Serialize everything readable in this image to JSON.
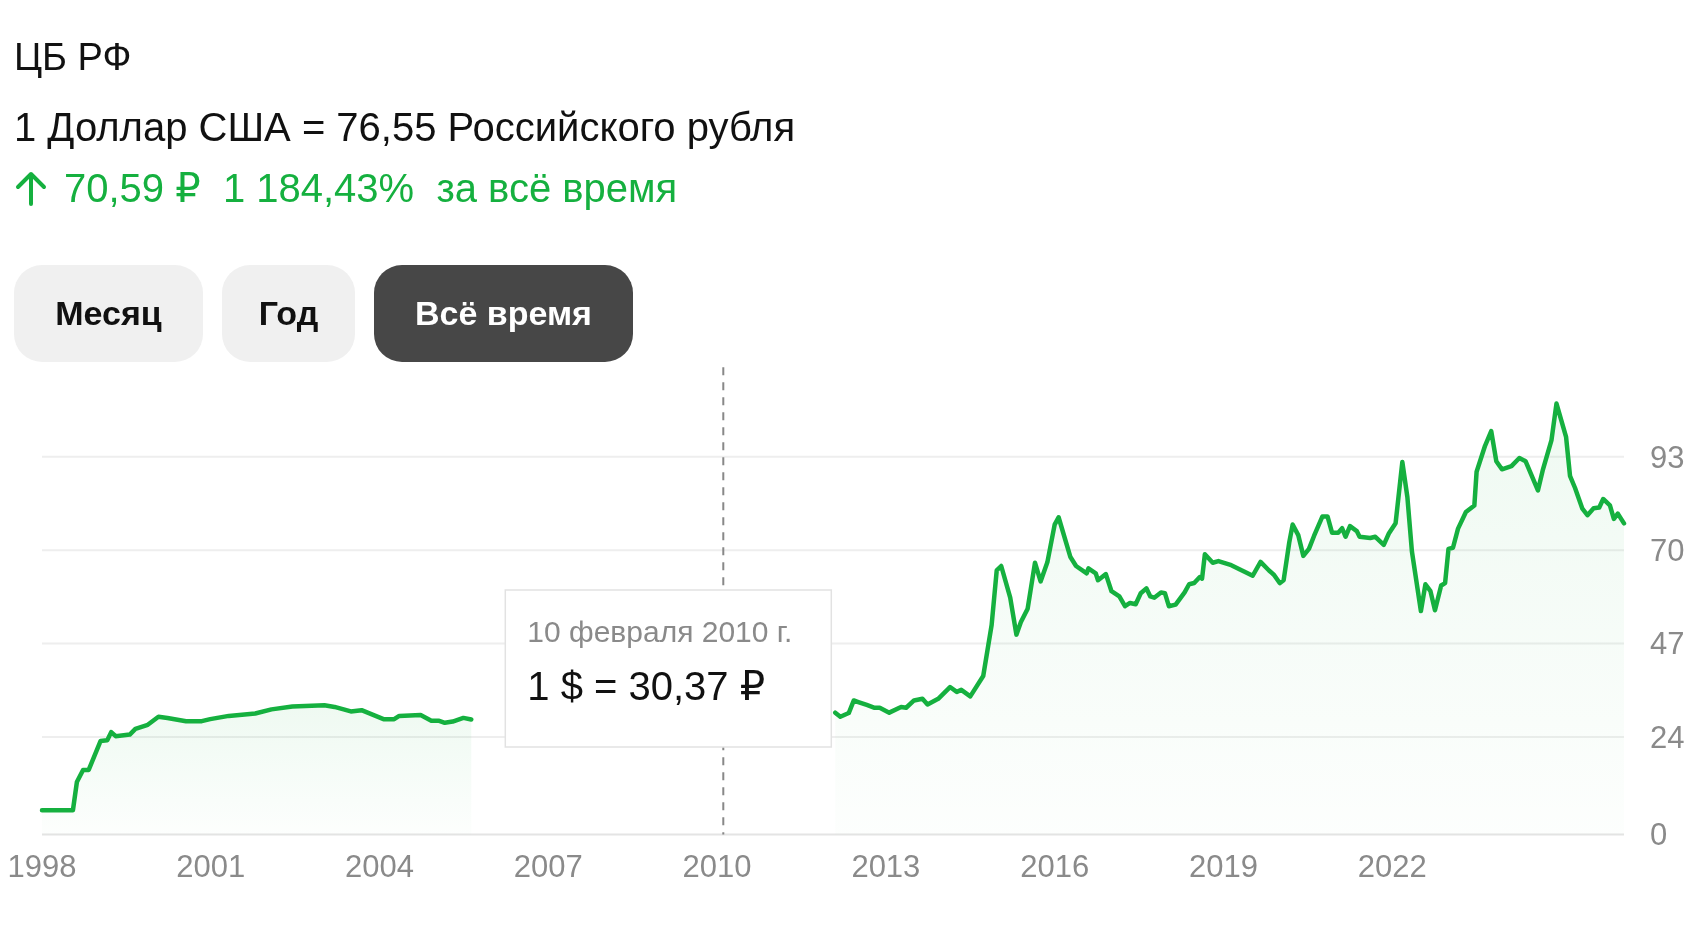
{
  "chart_data": {
    "type": "area",
    "title": "ЦБ РФ",
    "subtitle": "1 Доллар США = 76,55 Российского рубля",
    "annotations": [
      "70,59 ₽  1 184,43%  за всё время",
      "Месяц",
      "Год",
      "Всё время",
      "1 $ = 30,37 ₽"
    ],
    "series": [
      {
        "color": "#15b03f",
        "x": [
          1998.0,
          1998.55,
          1998.62,
          1998.73,
          1998.83,
          1999.04,
          1999.16,
          1999.23,
          1999.31,
          1999.56,
          1999.66,
          1999.88,
          2000.07,
          2000.23,
          2000.56,
          2000.84,
          2000.99,
          2001.32,
          2001.79,
          2002.08,
          2002.45,
          2003.02,
          2003.2,
          2003.49,
          2003.68,
          2004.07,
          2004.26,
          2004.35,
          2004.73,
          2004.92,
          2005.06,
          2005.16,
          2005.3,
          2005.49,
          2005.63
        ],
        "values": [
          6.0,
          6.0,
          12.9,
          15.9,
          15.9,
          23.0,
          23.2,
          25.2,
          24.2,
          24.6,
          26.0,
          27.0,
          29.0,
          28.7,
          27.9,
          27.9,
          28.4,
          29.2,
          29.8,
          30.8,
          31.5,
          31.8,
          31.4,
          30.3,
          30.6,
          28.4,
          28.4,
          29.2,
          29.4,
          28.0,
          28.0,
          27.5,
          27.8,
          28.7,
          28.3
        ]
      },
      {
        "color": "#15b03f",
        "x": [
          2012.1,
          2012.19,
          2012.34,
          2012.43,
          2012.51,
          2012.66,
          2012.8,
          2012.89,
          2013.06,
          2013.27,
          2013.36,
          2013.5,
          2013.65,
          2013.74,
          2013.93,
          2014.14,
          2014.26,
          2014.34,
          2014.5,
          2014.73,
          2014.88,
          2014.97,
          2015.05,
          2015.21,
          2015.32,
          2015.4,
          2015.52,
          2015.65,
          2015.75,
          2015.87,
          2016.0,
          2016.07,
          2016.28,
          2016.38,
          2016.57,
          2016.6,
          2016.73,
          2016.77,
          2016.91,
          2017.01,
          2017.15,
          2017.25,
          2017.34,
          2017.44,
          2017.53,
          2017.63,
          2017.7,
          2017.77,
          2017.89,
          2017.96,
          2018.03,
          2018.15,
          2018.31,
          2018.39,
          2018.48,
          2018.58,
          2018.62,
          2018.67,
          2018.81,
          2018.91,
          2019.14,
          2019.33,
          2019.52,
          2019.66,
          2019.81,
          2019.9,
          2020.0,
          2020.07,
          2020.17,
          2020.23,
          2020.33,
          2020.42,
          2020.52,
          2020.61,
          2020.76,
          2020.85,
          2020.93,
          2021.04,
          2021.11,
          2021.17,
          2021.25,
          2021.37,
          2021.42,
          2021.61,
          2021.7,
          2021.85,
          2021.94,
          2022.06,
          2022.18,
          2022.27,
          2022.35,
          2022.51,
          2022.59,
          2022.68,
          2022.76,
          2022.87,
          2022.94,
          2023.0,
          2023.08,
          2023.17,
          2023.31,
          2023.46,
          2023.5,
          2023.65,
          2023.76,
          2023.85,
          2023.95,
          2024.12,
          2024.26,
          2024.37,
          2024.59,
          2024.68,
          2024.83,
          2024.92,
          2025.09,
          2025.16,
          2025.25,
          2025.38,
          2025.47,
          2025.58,
          2025.68,
          2025.75,
          2025.87,
          2025.94,
          2026.01,
          2026.12
        ],
        "values": [
          30.0,
          29.0,
          29.9,
          33.0,
          32.6,
          31.9,
          31.2,
          31.2,
          30.0,
          31.4,
          31.2,
          33.0,
          33.4,
          32.0,
          33.4,
          36.3,
          35.1,
          35.6,
          34.0,
          39.0,
          51.6,
          65.0,
          66.1,
          58.3,
          49.2,
          52.3,
          55.6,
          66.9,
          62.3,
          67.0,
          76.3,
          78.1,
          68.3,
          66.1,
          64.3,
          65.5,
          64.3,
          62.6,
          64.1,
          59.9,
          58.6,
          56.2,
          57.0,
          56.7,
          59.4,
          60.6,
          58.6,
          58.3,
          59.6,
          59.4,
          56.2,
          56.6,
          59.6,
          61.6,
          61.9,
          63.4,
          63.0,
          69.0,
          66.9,
          67.3,
          66.3,
          65.0,
          63.7,
          67.1,
          65.0,
          63.9,
          61.9,
          62.6,
          71.9,
          76.3,
          73.7,
          68.6,
          70.3,
          73.5,
          78.3,
          78.3,
          74.3,
          74.3,
          75.4,
          73.3,
          75.9,
          74.7,
          73.3,
          73.0,
          73.3,
          71.3,
          74.1,
          76.6,
          91.7,
          83.0,
          69.7,
          55.0,
          61.6,
          59.9,
          55.2,
          61.3,
          61.9,
          70.3,
          70.6,
          75.3,
          79.4,
          81.0,
          89.3,
          95.7,
          99.3,
          91.9,
          89.9,
          90.7,
          92.7,
          91.9,
          84.7,
          89.9,
          97.0,
          106.1,
          97.9,
          88.3,
          85.3,
          80.2,
          78.6,
          80.3,
          80.5,
          82.6,
          81.0,
          77.7,
          79.0,
          76.6
        ]
      }
    ],
    "xlim": [
      1998,
      2026.12
    ],
    "xticks": [
      1998,
      2001,
      2004,
      2007,
      2010,
      2013,
      2016,
      2019,
      2022
    ],
    "ylim": [
      0,
      115
    ],
    "yticks": [
      0,
      24,
      47,
      70,
      93
    ],
    "ref_lines": [
      {
        "axis": "x",
        "value": 2010.11,
        "label": "10 февраля 2010 г.",
        "line_style": "dashed",
        "color": "#888888"
      }
    ],
    "grid": "y"
  }
}
